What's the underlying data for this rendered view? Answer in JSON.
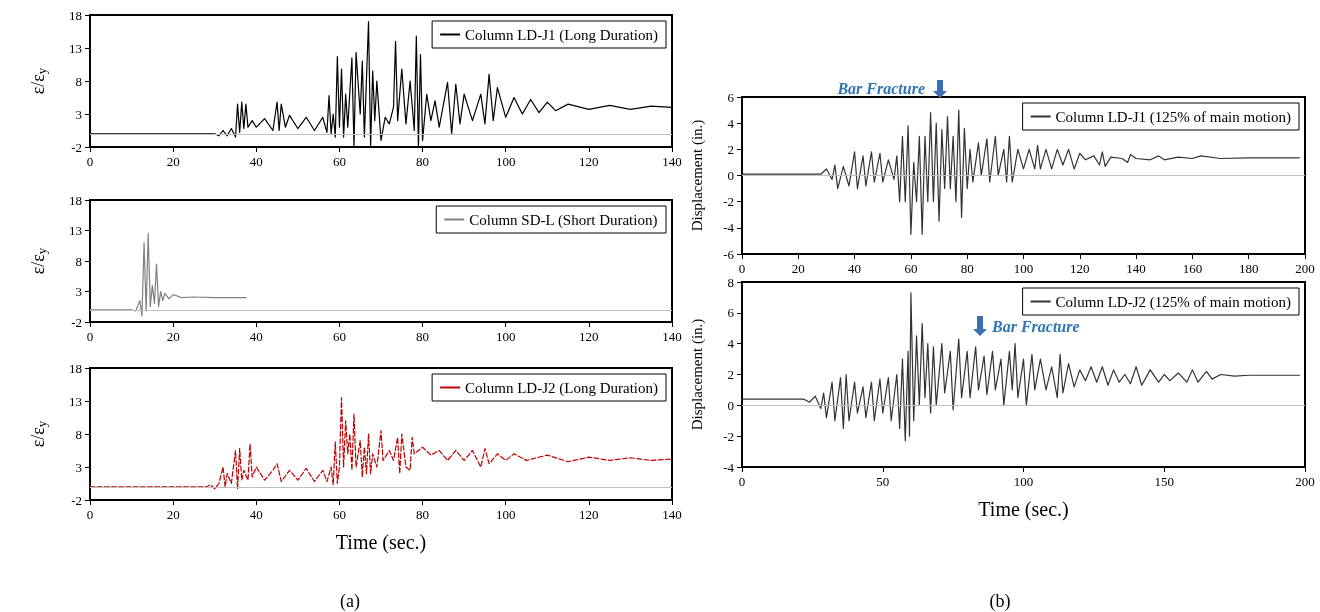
{
  "chart_data": [
    {
      "type": "line",
      "ylabel": "ε/ε$_{y}$",
      "xlim": [
        0,
        140
      ],
      "xticks": [
        0,
        20,
        40,
        60,
        80,
        100,
        120,
        140
      ],
      "ylim": [
        -2,
        18
      ],
      "yticks": [
        -2,
        3,
        8,
        13,
        18
      ],
      "legend": "top right",
      "grid": false,
      "marker": "none",
      "line_style": "solid",
      "ref_lines": [
        {
          "axis": "y",
          "value": 0,
          "color": "#bfbfbf"
        }
      ],
      "series": [
        {
          "name": "Column LD-J1 (Long Duration)",
          "color": "#000000",
          "x": [
            0,
            30,
            31,
            32,
            33,
            34,
            35,
            35.5,
            36,
            36.5,
            37,
            37.5,
            38,
            39,
            40,
            42,
            44,
            45,
            45.5,
            46,
            47,
            48,
            50,
            52,
            54,
            56,
            57,
            57.5,
            58,
            58.5,
            59,
            59.5,
            60,
            60.5,
            61,
            61.5,
            62,
            63,
            63.5,
            64,
            65,
            65.5,
            66,
            67,
            67.5,
            68,
            68.5,
            69,
            70,
            71,
            72,
            73,
            73.5,
            74,
            75,
            76,
            77,
            78,
            78.5,
            79,
            79.5,
            80,
            81,
            82,
            83,
            84,
            86,
            87,
            88,
            89,
            90,
            92,
            94,
            95,
            96,
            97,
            98,
            100,
            102,
            104,
            106,
            108,
            110,
            112,
            115,
            120,
            125,
            130,
            135,
            140
          ],
          "values": [
            0,
            0,
            -0.3,
            0.5,
            -0.3,
            0.8,
            -0.5,
            4.5,
            0.2,
            4.8,
            0.8,
            4.5,
            1,
            2,
            1,
            2.3,
            0.5,
            4.8,
            0.5,
            4.5,
            1,
            2.8,
            0.8,
            2.5,
            0.5,
            2.5,
            0.2,
            5.8,
            0,
            3,
            -0.5,
            11.7,
            1,
            9.8,
            -0.5,
            6,
            1,
            11.5,
            -2,
            12.3,
            3,
            11,
            -0.5,
            17,
            -2,
            9.5,
            2,
            8,
            -1,
            2.5,
            1.5,
            4,
            14,
            2,
            9.8,
            1.5,
            8,
            0.5,
            14.8,
            -2,
            12,
            -1,
            6,
            2,
            5,
            1,
            7.8,
            0,
            7.5,
            1.5,
            6,
            2,
            6,
            1.5,
            9,
            2,
            7,
            2.5,
            5.5,
            3,
            5.2,
            3.2,
            4.8,
            3.5,
            4.5,
            3.7,
            4.3,
            3.7,
            4.2,
            4
          ]
        }
      ]
    },
    {
      "type": "line",
      "ylabel": "ε/ε$_{y}$",
      "xlim": [
        0,
        140
      ],
      "xticks": [
        0,
        20,
        40,
        60,
        80,
        100,
        120,
        140
      ],
      "ylim": [
        -2,
        18
      ],
      "yticks": [
        -2,
        3,
        8,
        13,
        18
      ],
      "legend": "top right",
      "grid": false,
      "marker": "none",
      "line_style": "solid",
      "ref_lines": [
        {
          "axis": "y",
          "value": 0,
          "color": "#bfbfbf"
        }
      ],
      "series": [
        {
          "name": "Column SD-L (Short Duration)",
          "color": "#808080",
          "x": [
            0,
            10,
            11,
            12,
            12.5,
            13,
            13.5,
            14,
            14.5,
            15,
            15.5,
            16,
            16.5,
            17,
            17.5,
            18,
            19,
            20,
            22,
            25,
            30,
            37.5
          ],
          "values": [
            0,
            0,
            -0.2,
            1.5,
            -1,
            11,
            -0.2,
            12.5,
            0.5,
            4,
            1,
            7.5,
            0.5,
            3,
            1.5,
            2.7,
            1.8,
            2.5,
            2,
            2.1,
            2,
            2
          ]
        }
      ]
    },
    {
      "type": "line",
      "ylabel": "ε/ε$_{y}$",
      "xlabel": "Time (sec.)",
      "annotations": [
        "(a)"
      ],
      "xlim": [
        0,
        140
      ],
      "xticks": [
        0,
        20,
        40,
        60,
        80,
        100,
        120,
        140
      ],
      "ylim": [
        -2,
        18
      ],
      "yticks": [
        -2,
        3,
        8,
        13,
        18
      ],
      "legend": "top right",
      "grid": false,
      "marker": "none",
      "line_style": "dashed",
      "ref_lines": [
        {
          "axis": "y",
          "value": 0,
          "color": "#bfbfbf"
        }
      ],
      "series": [
        {
          "name": "Column LD-J2 (Long Duration)",
          "color": "#c00000",
          "x": [
            0,
            28,
            29,
            30,
            31,
            32,
            32.5,
            33,
            34,
            35,
            35.5,
            36,
            36.5,
            37,
            38,
            38.5,
            39,
            40,
            42,
            44,
            45,
            46,
            48,
            50,
            52,
            54,
            56,
            57,
            58,
            58.5,
            59,
            59.5,
            60,
            60.5,
            61,
            61.5,
            62,
            62.5,
            63,
            63.5,
            64,
            65,
            65.5,
            66,
            66.5,
            67,
            67.5,
            68,
            69,
            70,
            70.5,
            72,
            73,
            74,
            74.5,
            75,
            76,
            77,
            77.5,
            78,
            80,
            82,
            84,
            86,
            88,
            90,
            92,
            94,
            95,
            96,
            98,
            100,
            102,
            105,
            110,
            115,
            120,
            125,
            130,
            135,
            140
          ],
          "values": [
            0,
            0,
            0.3,
            -0.3,
            0.5,
            3,
            0,
            2,
            0.5,
            5.5,
            -0.3,
            5.8,
            1,
            2.5,
            1,
            6.5,
            1.5,
            3,
            1,
            2.5,
            3.5,
            0.8,
            2.5,
            1,
            2.8,
            0.8,
            2.5,
            0.8,
            3,
            0.3,
            6.8,
            0.5,
            3,
            13.5,
            3,
            10,
            5,
            8,
            2.5,
            11,
            3,
            7,
            1.5,
            6,
            2,
            8,
            2,
            5,
            3,
            8.5,
            4,
            5.5,
            4,
            7.5,
            2,
            8,
            3,
            2.5,
            7.5,
            5,
            6,
            4.8,
            5.5,
            4,
            5.5,
            4,
            5.5,
            3,
            5.8,
            3.5,
            5,
            4,
            5,
            4,
            4.8,
            3.8,
            4.5,
            4,
            4.4,
            4,
            4.2
          ]
        }
      ]
    },
    {
      "type": "line",
      "ylabel": "Displacement (in.)",
      "annotations": [
        "Bar Fracture"
      ],
      "xlim": [
        0,
        200
      ],
      "xticks": [
        0,
        20,
        40,
        60,
        80,
        100,
        120,
        140,
        160,
        180,
        200
      ],
      "ylim": [
        -6,
        6
      ],
      "yticks": [
        -6,
        -4,
        -2,
        0,
        2,
        4,
        6
      ],
      "legend": "top right",
      "grid": false,
      "marker": "none",
      "line_style": "solid",
      "ref_lines": [
        {
          "axis": "y",
          "value": 0,
          "color": "#bfbfbf"
        }
      ],
      "series": [
        {
          "name": "Column LD-J1 (125% of main motion)",
          "color": "#333333",
          "x": [
            0,
            25,
            28,
            30,
            32,
            33,
            34,
            36,
            38,
            40,
            41,
            43,
            44,
            46,
            47,
            49,
            50,
            52,
            54,
            55,
            56,
            57,
            58,
            59,
            60,
            61,
            62,
            63,
            64,
            65,
            66,
            67,
            68,
            69,
            70,
            71,
            72,
            73,
            74,
            75,
            76,
            77,
            78,
            79,
            80,
            81,
            82,
            84,
            85,
            87,
            88,
            90,
            91,
            93,
            94,
            95,
            96,
            98,
            100,
            102,
            104,
            105,
            106,
            108,
            110,
            112,
            114,
            116,
            118,
            120,
            122,
            125,
            127,
            128,
            129,
            131,
            135,
            137,
            138,
            140,
            145,
            148,
            150,
            155,
            160,
            163,
            170,
            180,
            198
          ],
          "values": [
            0.1,
            0.1,
            0.1,
            0.5,
            -0.3,
            0.8,
            -1,
            0.7,
            -0.8,
            1.8,
            -1,
            1.5,
            -0.8,
            1.8,
            -0.5,
            1.7,
            -0.5,
            1.2,
            -0.3,
            1.5,
            -2,
            3,
            -2,
            3.8,
            -4.5,
            1,
            -2,
            3,
            -4.5,
            3,
            -2,
            4.8,
            -2,
            4,
            -3.5,
            3.5,
            -1,
            4.5,
            -1,
            3,
            -2,
            5,
            -3.2,
            3.6,
            -1,
            2,
            -0.5,
            2.5,
            0,
            2.8,
            -0.5,
            3,
            0,
            2,
            -0.5,
            3,
            -0.5,
            2,
            0.5,
            2,
            0.5,
            2.3,
            0.5,
            2,
            0.5,
            2,
            0.8,
            2,
            0.5,
            1.7,
            1.2,
            1.5,
            0.8,
            1.8,
            0.7,
            1.4,
            1.3,
            1,
            1.6,
            1.3,
            1.2,
            1.5,
            1.2,
            1.4,
            1.3,
            1.5,
            1.3,
            1.35,
            1.35
          ]
        }
      ]
    },
    {
      "type": "line",
      "ylabel": "Displacement (in.)",
      "xlabel": "Time (sec.)",
      "annotations": [
        "Bar Fracture",
        "(b)"
      ],
      "xlim": [
        0,
        200
      ],
      "xticks": [
        0,
        50,
        100,
        150,
        200
      ],
      "ylim": [
        -4,
        8
      ],
      "yticks": [
        -4,
        -2,
        0,
        2,
        4,
        6,
        8
      ],
      "legend": "top right",
      "grid": false,
      "marker": "none",
      "line_style": "solid",
      "ref_lines": [
        {
          "axis": "y",
          "value": 0,
          "color": "#bfbfbf"
        }
      ],
      "series": [
        {
          "name": "Column LD-J2 (125% of main motion)",
          "color": "#333333",
          "x": [
            0,
            20,
            22,
            24,
            26,
            28,
            29,
            30,
            32,
            33,
            35,
            36,
            37,
            38,
            40,
            41,
            43,
            44,
            46,
            47,
            49,
            50,
            52,
            53,
            55,
            56,
            57,
            58,
            59,
            59.5,
            60,
            61,
            62,
            63,
            64,
            65,
            66,
            67,
            68,
            69,
            71,
            72,
            74,
            75,
            77,
            78,
            80,
            81,
            83,
            84,
            86,
            87,
            89,
            90,
            92,
            93,
            95,
            96,
            97,
            98,
            100,
            101,
            103,
            104,
            106,
            108,
            110,
            112,
            113,
            114,
            116,
            118,
            120,
            122,
            124,
            126,
            128,
            130,
            132,
            134,
            136,
            138,
            140,
            142,
            145,
            148,
            150,
            152,
            155,
            158,
            160,
            162,
            165,
            167,
            170,
            175,
            180,
            198
          ],
          "values": [
            0.4,
            0.4,
            0.4,
            0.2,
            0.6,
            -0.2,
            0.8,
            -0.8,
            1.5,
            -1,
            1.8,
            -1.5,
            2,
            -1,
            1.5,
            -0.5,
            1.2,
            -0.8,
            1.5,
            -1,
            1.7,
            -0.5,
            1.8,
            -1,
            2,
            -1.5,
            3,
            -2.3,
            3.5,
            -2,
            7.3,
            -1,
            4.5,
            0,
            5.3,
            0.5,
            4,
            -0.5,
            3.8,
            0,
            4,
            0.8,
            3.5,
            -0.3,
            4.3,
            0.5,
            3.5,
            0.5,
            3.8,
            1,
            3.2,
            0.7,
            3.5,
            1,
            3,
            0,
            3.5,
            1,
            4,
            0.5,
            3,
            0,
            3.3,
            1,
            3,
            1,
            2.5,
            0.5,
            3.3,
            0.8,
            2.7,
            1.2,
            2.3,
            1.6,
            2.5,
            1.5,
            2.5,
            1.3,
            2.3,
            1.5,
            2,
            1.4,
            2.5,
            1.3,
            2.3,
            1.5,
            2,
            1.6,
            2.1,
            1.5,
            2.3,
            1.5,
            2.2,
            1.7,
            2,
            1.9,
            1.95,
            1.95
          ]
        }
      ]
    }
  ]
}
